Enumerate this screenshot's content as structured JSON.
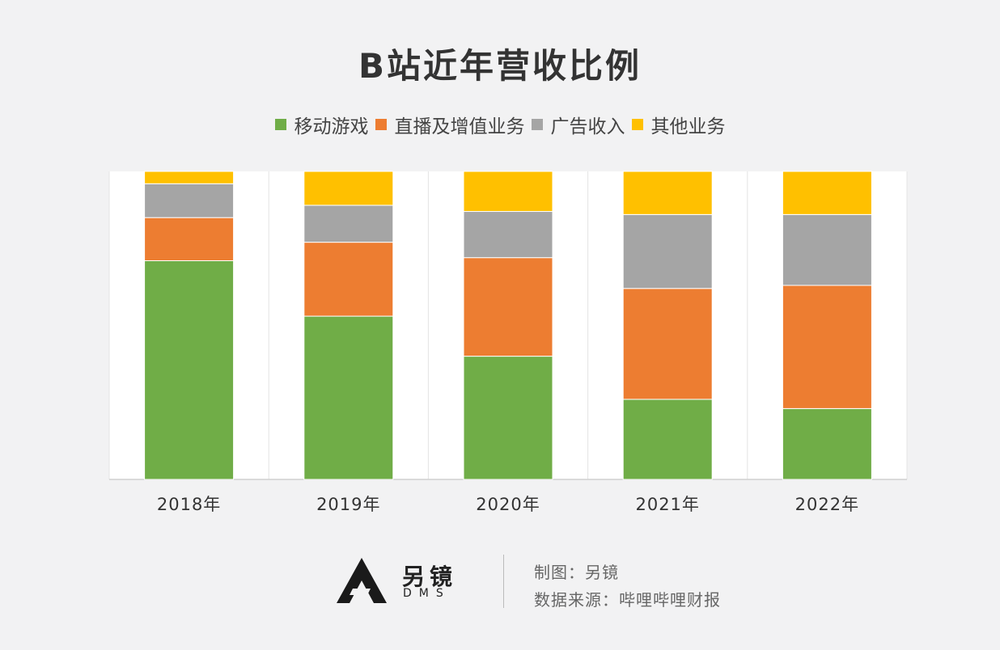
{
  "title": "B站近年营收比例",
  "legend": [
    {
      "label": "移动游戏",
      "color": "#70ad47"
    },
    {
      "label": "直播及增值业务",
      "color": "#ed7d31"
    },
    {
      "label": "广告收入",
      "color": "#a5a5a5"
    },
    {
      "label": "其他业务",
      "color": "#ffc000"
    }
  ],
  "chart_data": {
    "type": "bar",
    "stacked": true,
    "normalized": true,
    "categories": [
      "2018年",
      "2019年",
      "2020年",
      "2021年",
      "2022年"
    ],
    "series": [
      {
        "name": "移动游戏",
        "color": "#70ad47",
        "values": [
          71,
          53,
          40,
          26,
          23
        ]
      },
      {
        "name": "直播及增值业务",
        "color": "#ed7d31",
        "values": [
          14,
          24,
          32,
          36,
          40
        ]
      },
      {
        "name": "广告收入",
        "color": "#a5a5a5",
        "values": [
          11,
          12,
          15,
          24,
          23
        ]
      },
      {
        "name": "其他业务",
        "color": "#ffc000",
        "values": [
          4,
          11,
          13,
          14,
          14
        ]
      }
    ],
    "ylim": [
      0,
      100
    ],
    "grid": false,
    "legend_position": "top"
  },
  "footer": {
    "logo_text": "另镜",
    "logo_sub": "DMS",
    "credit_label": "制图：另镜",
    "source_label": "数据来源：哔哩哔哩财报"
  }
}
